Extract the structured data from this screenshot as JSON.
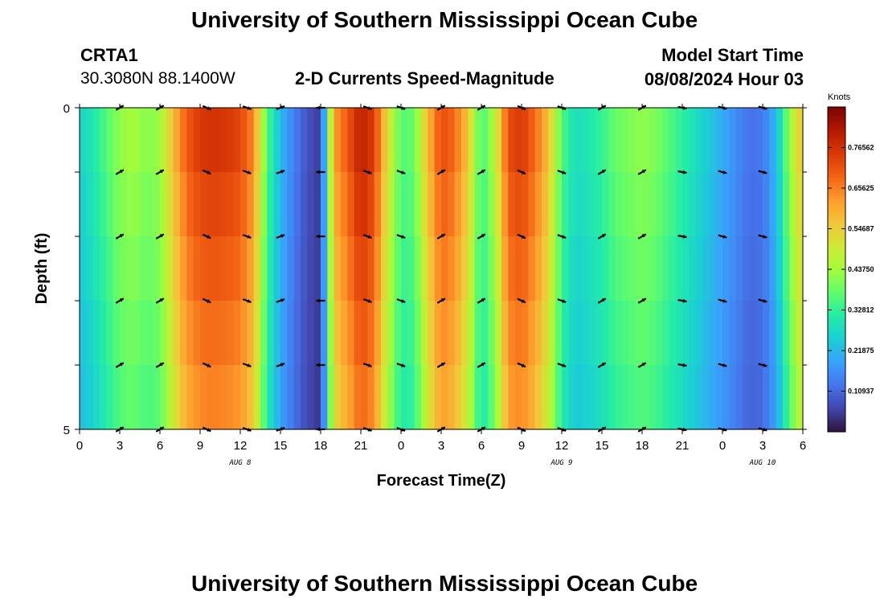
{
  "header": {
    "title": "University of Southern Mississippi Ocean Cube",
    "station": "CRTA1",
    "coords": "30.3080N  88.1400W",
    "chart_subtitle": "2-D Currents Speed-Magnitude",
    "model_start_label": "Model Start Time",
    "model_start_value": "08/08/2024 Hour 03"
  },
  "footer": {
    "title": "University of Southern Mississippi Ocean Cube"
  },
  "colors": {
    "colormap": [
      "#30123b",
      "#4145ab",
      "#4675ed",
      "#39a2fc",
      "#1bcfd4",
      "#24eca6",
      "#61fc6c",
      "#a4fc3b",
      "#d1e834",
      "#f3c63a",
      "#fe9b2d",
      "#f36315",
      "#d93806",
      "#b11901",
      "#7a0402"
    ]
  },
  "chart_data": {
    "type": "heatmap",
    "title": "2-D Currents Speed-Magnitude",
    "xlabel": "Forecast Time(Z)",
    "ylabel": "Depth (ft)",
    "ylim": [
      0,
      5
    ],
    "y_tick_labels": [
      "0",
      "5"
    ],
    "x_tick_labels": [
      "0",
      "3",
      "6",
      "9",
      "12",
      "15",
      "18",
      "21",
      "0",
      "3",
      "6",
      "9",
      "12",
      "15",
      "18",
      "21",
      "0",
      "3",
      "6"
    ],
    "x_tick_hours": [
      0,
      3,
      6,
      9,
      12,
      15,
      18,
      21,
      24,
      27,
      30,
      33,
      36,
      39,
      42,
      45,
      48,
      51,
      54
    ],
    "date_labels": [
      {
        "text": "AUG 8",
        "hour": 12
      },
      {
        "text": "AUG 9",
        "hour": 36
      },
      {
        "text": "AUG 10",
        "hour": 51
      }
    ],
    "xlim_hours": [
      0,
      54
    ],
    "colorbar": {
      "title": "Knots",
      "range": [
        0,
        0.875
      ],
      "tick_labels": [
        "0.76562",
        "0.65625",
        "0.54687",
        "0.43750",
        "0.32812",
        "0.21875",
        "0.10937"
      ],
      "tick_values": [
        0.765625,
        0.65625,
        0.546875,
        0.4375,
        0.328125,
        0.21875,
        0.109375
      ]
    },
    "speed_by_hour": [
      [
        0,
        0.26
      ],
      [
        1,
        0.3
      ],
      [
        2,
        0.36
      ],
      [
        3,
        0.42
      ],
      [
        4,
        0.44
      ],
      [
        5,
        0.41
      ],
      [
        6,
        0.43
      ],
      [
        7,
        0.58
      ],
      [
        8,
        0.7
      ],
      [
        9,
        0.75
      ],
      [
        10,
        0.76
      ],
      [
        11,
        0.75
      ],
      [
        12,
        0.73
      ],
      [
        13,
        0.64
      ],
      [
        14,
        0.36
      ],
      [
        15,
        0.22
      ],
      [
        16,
        0.14
      ],
      [
        17,
        0.08
      ],
      [
        18,
        0.05
      ],
      [
        19,
        0.62
      ],
      [
        20,
        0.7
      ],
      [
        21,
        0.8
      ],
      [
        22,
        0.74
      ],
      [
        23,
        0.52
      ],
      [
        24,
        0.36
      ],
      [
        25,
        0.38
      ],
      [
        26,
        0.58
      ],
      [
        27,
        0.72
      ],
      [
        28,
        0.68
      ],
      [
        29,
        0.56
      ],
      [
        30,
        0.34
      ],
      [
        31,
        0.46
      ],
      [
        32,
        0.72
      ],
      [
        33,
        0.75
      ],
      [
        34,
        0.68
      ],
      [
        35,
        0.57
      ],
      [
        36,
        0.36
      ],
      [
        37,
        0.28
      ],
      [
        38,
        0.3
      ],
      [
        39,
        0.33
      ],
      [
        40,
        0.38
      ],
      [
        41,
        0.4
      ],
      [
        42,
        0.42
      ],
      [
        43,
        0.4
      ],
      [
        44,
        0.36
      ],
      [
        45,
        0.32
      ],
      [
        46,
        0.28
      ],
      [
        47,
        0.24
      ],
      [
        48,
        0.2
      ],
      [
        49,
        0.16
      ],
      [
        50,
        0.12
      ],
      [
        51,
        0.13
      ],
      [
        52,
        0.22
      ],
      [
        53,
        0.42
      ],
      [
        54,
        0.58
      ]
    ],
    "vector_hours": [
      3,
      6,
      9.5,
      12.5,
      15,
      18,
      21.5,
      24,
      27,
      30,
      33,
      36,
      39,
      42,
      45,
      48,
      51
    ],
    "vector_depths": [
      0,
      1,
      2,
      3,
      4,
      5
    ],
    "vector_angles_deg": [
      -30,
      -30,
      25,
      20,
      -20,
      180,
      20,
      20,
      -30,
      -30,
      25,
      20,
      -30,
      -30,
      10,
      15,
      15
    ]
  }
}
